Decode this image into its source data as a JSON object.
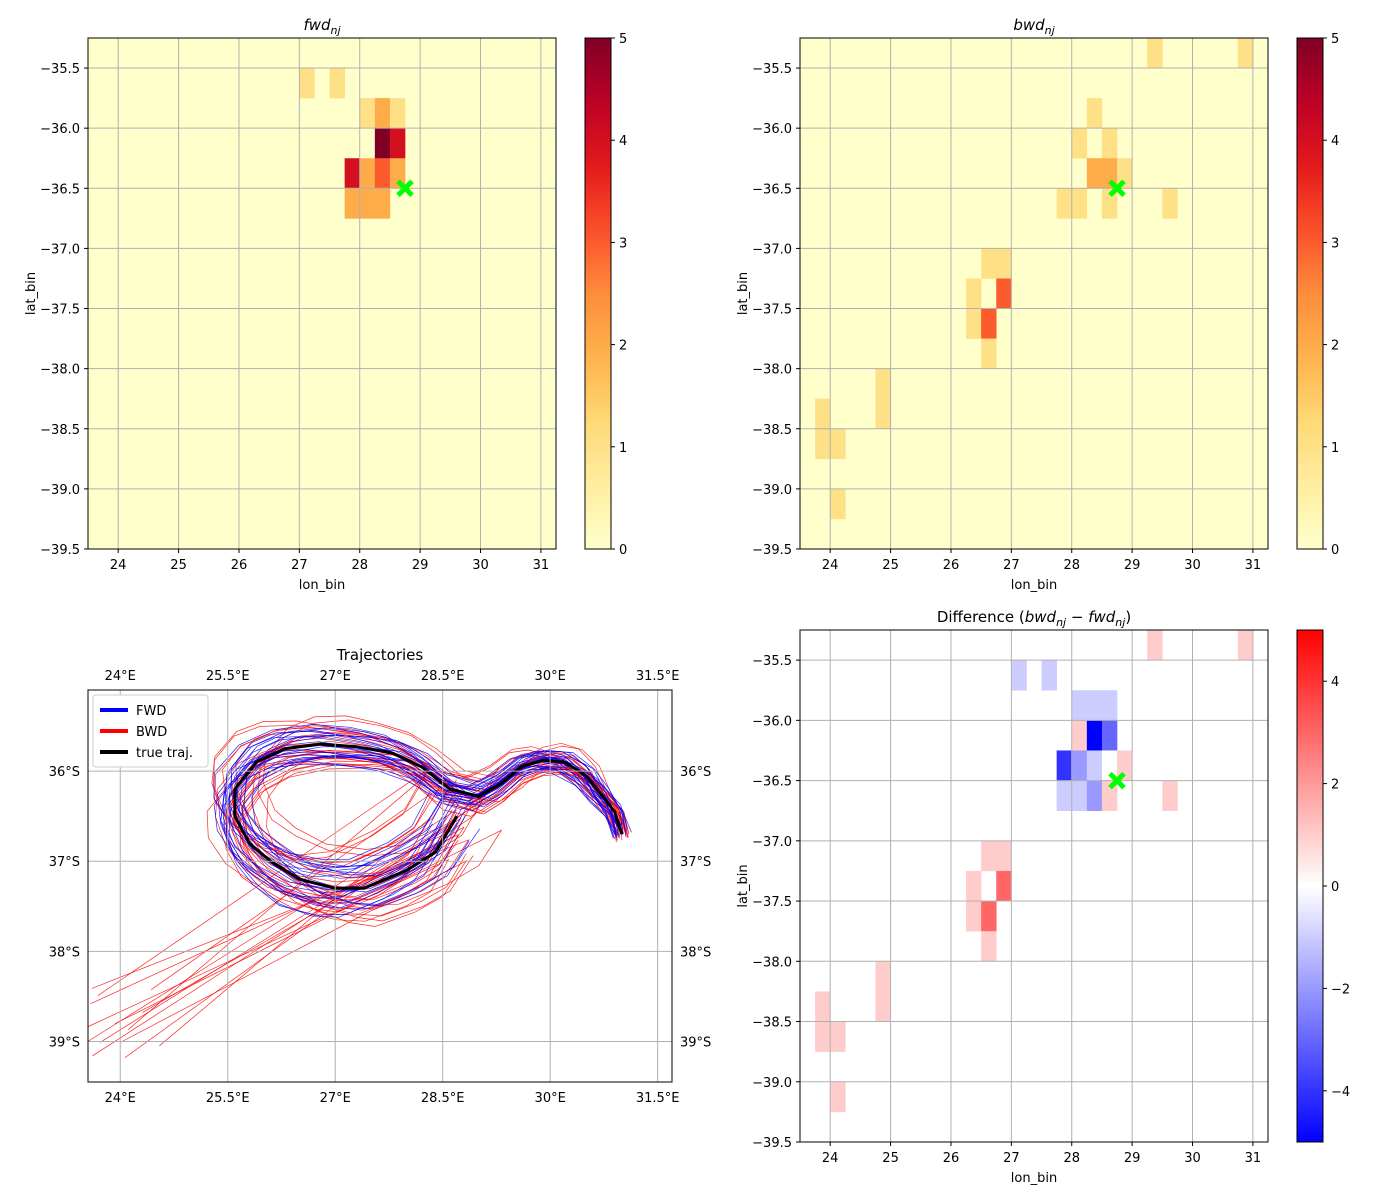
{
  "chart_data": [
    {
      "type": "heatmap",
      "id": "fwd",
      "title_main": "fwd",
      "title_sub": "nj",
      "xlabel": "lon_bin",
      "ylabel": "lat_bin",
      "xlim": [
        23.5,
        31.25
      ],
      "ylim": [
        -39.5,
        -35.25
      ],
      "xticks": [
        24,
        25,
        26,
        27,
        28,
        29,
        30,
        31
      ],
      "yticks": [
        -35.5,
        -36.0,
        -36.5,
        -37.0,
        -37.5,
        -38.0,
        -38.5,
        -39.0,
        -39.5
      ],
      "grid": true,
      "colormap": "YlOrRd",
      "clim": [
        0,
        5
      ],
      "colorbar_ticks": [
        0,
        1,
        2,
        3,
        4,
        5
      ],
      "bin_size_deg": 0.25,
      "cells": [
        {
          "lon": 27.0,
          "lat": -35.75,
          "value": 1
        },
        {
          "lon": 27.5,
          "lat": -35.75,
          "value": 1
        },
        {
          "lon": 28.0,
          "lat": -36.0,
          "value": 1
        },
        {
          "lon": 28.25,
          "lat": -36.0,
          "value": 2
        },
        {
          "lon": 28.5,
          "lat": -36.0,
          "value": 1
        },
        {
          "lon": 28.25,
          "lat": -36.25,
          "value": 5
        },
        {
          "lon": 28.5,
          "lat": -36.25,
          "value": 4
        },
        {
          "lon": 27.75,
          "lat": -36.5,
          "value": 4
        },
        {
          "lon": 28.0,
          "lat": -36.5,
          "value": 2
        },
        {
          "lon": 28.25,
          "lat": -36.5,
          "value": 3
        },
        {
          "lon": 28.5,
          "lat": -36.5,
          "value": 2
        },
        {
          "lon": 27.75,
          "lat": -36.75,
          "value": 2
        },
        {
          "lon": 28.0,
          "lat": -36.75,
          "value": 2
        },
        {
          "lon": 28.25,
          "lat": -36.75,
          "value": 2
        }
      ],
      "marker": {
        "lon": 28.75,
        "lat": -36.5,
        "color": "#00ff00",
        "shape": "X"
      }
    },
    {
      "type": "heatmap",
      "id": "bwd",
      "title_main": "bwd",
      "title_sub": "nj",
      "xlabel": "lon_bin",
      "ylabel": "lat_bin",
      "xlim": [
        23.5,
        31.25
      ],
      "ylim": [
        -39.5,
        -35.25
      ],
      "xticks": [
        24,
        25,
        26,
        27,
        28,
        29,
        30,
        31
      ],
      "yticks": [
        -35.5,
        -36.0,
        -36.5,
        -37.0,
        -37.5,
        -38.0,
        -38.5,
        -39.0,
        -39.5
      ],
      "grid": true,
      "colormap": "YlOrRd",
      "clim": [
        0,
        5
      ],
      "colorbar_ticks": [
        0,
        1,
        2,
        3,
        4,
        5
      ],
      "bin_size_deg": 0.25,
      "cells": [
        {
          "lon": 29.25,
          "lat": -35.5,
          "value": 1
        },
        {
          "lon": 30.75,
          "lat": -35.5,
          "value": 1
        },
        {
          "lon": 28.25,
          "lat": -36.0,
          "value": 1
        },
        {
          "lon": 28.0,
          "lat": -36.25,
          "value": 1
        },
        {
          "lon": 28.5,
          "lat": -36.25,
          "value": 1
        },
        {
          "lon": 28.25,
          "lat": -36.5,
          "value": 2
        },
        {
          "lon": 28.5,
          "lat": -36.5,
          "value": 2
        },
        {
          "lon": 28.75,
          "lat": -36.5,
          "value": 1
        },
        {
          "lon": 27.75,
          "lat": -36.75,
          "value": 1
        },
        {
          "lon": 28.0,
          "lat": -36.75,
          "value": 1
        },
        {
          "lon": 28.5,
          "lat": -36.75,
          "value": 1
        },
        {
          "lon": 29.5,
          "lat": -36.75,
          "value": 1
        },
        {
          "lon": 26.5,
          "lat": -37.25,
          "value": 1
        },
        {
          "lon": 26.75,
          "lat": -37.25,
          "value": 1
        },
        {
          "lon": 26.25,
          "lat": -37.5,
          "value": 1
        },
        {
          "lon": 26.75,
          "lat": -37.5,
          "value": 3
        },
        {
          "lon": 26.25,
          "lat": -37.75,
          "value": 1
        },
        {
          "lon": 26.5,
          "lat": -37.75,
          "value": 3
        },
        {
          "lon": 26.5,
          "lat": -38.0,
          "value": 1
        },
        {
          "lon": 24.75,
          "lat": -38.25,
          "value": 1
        },
        {
          "lon": 24.75,
          "lat": -38.5,
          "value": 1
        },
        {
          "lon": 23.75,
          "lat": -38.5,
          "value": 1
        },
        {
          "lon": 23.75,
          "lat": -38.75,
          "value": 1
        },
        {
          "lon": 24.0,
          "lat": -38.75,
          "value": 1
        },
        {
          "lon": 24.0,
          "lat": -39.25,
          "value": 1
        }
      ],
      "marker": {
        "lon": 28.75,
        "lat": -36.5,
        "color": "#00ff00",
        "shape": "X"
      }
    },
    {
      "type": "line",
      "id": "traj",
      "title": "Trajectories",
      "projection": "PlateCarree",
      "xlim": [
        23.55,
        31.7
      ],
      "ylim": [
        -39.45,
        -35.1
      ],
      "xticks": [
        24,
        25.5,
        27,
        28.5,
        30,
        31.5
      ],
      "xticklabels": [
        "24°E",
        "25.5°E",
        "27°E",
        "28.5°E",
        "30°E",
        "31.5°E"
      ],
      "yticks": [
        -36,
        -37,
        -38,
        -39
      ],
      "yticklabels": [
        "36°S",
        "37°S",
        "38°S",
        "39°S"
      ],
      "grid": true,
      "legend": {
        "position": "upper-left",
        "entries": [
          {
            "label": "FWD",
            "color": "#0000ff"
          },
          {
            "label": "BWD",
            "color": "#ff0000"
          },
          {
            "label": "true traj."
          }
        ]
      },
      "series": [
        {
          "name": "FWD",
          "color": "#0000ff",
          "description": "ensemble of forward trajectories"
        },
        {
          "name": "BWD",
          "color": "#ff0000",
          "description": "ensemble of backward trajectories"
        },
        {
          "name": "true traj.",
          "color": "#000000",
          "x": [
            28.7,
            28.4,
            28.0,
            27.4,
            27.0,
            26.5,
            26.1,
            25.8,
            25.6,
            25.6,
            25.9,
            26.3,
            26.8,
            27.3,
            27.8,
            28.2,
            28.6,
            29.0,
            29.3,
            29.6,
            29.9,
            30.2,
            30.5,
            30.7,
            30.9,
            31.0
          ],
          "y": [
            -36.5,
            -36.9,
            -37.1,
            -37.3,
            -37.3,
            -37.2,
            -37.0,
            -36.8,
            -36.5,
            -36.2,
            -35.9,
            -35.75,
            -35.7,
            -35.73,
            -35.8,
            -35.95,
            -36.2,
            -36.28,
            -36.15,
            -35.95,
            -35.88,
            -35.9,
            -36.05,
            -36.25,
            -36.45,
            -36.7
          ]
        }
      ]
    },
    {
      "type": "heatmap",
      "id": "diff",
      "title_prefix": "Difference (",
      "title_a": "bwd",
      "title_minus": " − ",
      "title_b": "fwd",
      "title_sub": "nj",
      "title_suffix": ")",
      "xlabel": "lon_bin",
      "ylabel": "lat_bin",
      "xlim": [
        23.5,
        31.25
      ],
      "ylim": [
        -39.5,
        -35.25
      ],
      "xticks": [
        24,
        25,
        26,
        27,
        28,
        29,
        30,
        31
      ],
      "yticks": [
        -35.5,
        -36.0,
        -36.5,
        -37.0,
        -37.5,
        -38.0,
        -38.5,
        -39.0,
        -39.5
      ],
      "grid": true,
      "colormap": "bwr",
      "clim": [
        -5,
        5
      ],
      "colorbar_ticks": [
        -4,
        -2,
        0,
        2,
        4
      ],
      "bin_size_deg": 0.25,
      "cells": [
        {
          "lon": 29.25,
          "lat": -35.5,
          "value": 1
        },
        {
          "lon": 30.75,
          "lat": -35.5,
          "value": 1
        },
        {
          "lon": 27.0,
          "lat": -35.75,
          "value": -1
        },
        {
          "lon": 27.5,
          "lat": -35.75,
          "value": -1
        },
        {
          "lon": 28.0,
          "lat": -36.0,
          "value": -1
        },
        {
          "lon": 28.25,
          "lat": -36.0,
          "value": -1
        },
        {
          "lon": 28.5,
          "lat": -36.0,
          "value": -1
        },
        {
          "lon": 28.0,
          "lat": -36.25,
          "value": 1
        },
        {
          "lon": 28.25,
          "lat": -36.25,
          "value": -5
        },
        {
          "lon": 28.5,
          "lat": -36.25,
          "value": -3
        },
        {
          "lon": 27.75,
          "lat": -36.5,
          "value": -4
        },
        {
          "lon": 28.0,
          "lat": -36.5,
          "value": -2
        },
        {
          "lon": 28.25,
          "lat": -36.5,
          "value": -1
        },
        {
          "lon": 28.5,
          "lat": -36.5,
          "value": 0
        },
        {
          "lon": 28.75,
          "lat": -36.5,
          "value": 1
        },
        {
          "lon": 27.75,
          "lat": -36.75,
          "value": -1
        },
        {
          "lon": 28.0,
          "lat": -36.75,
          "value": -1
        },
        {
          "lon": 28.25,
          "lat": -36.75,
          "value": -2
        },
        {
          "lon": 28.5,
          "lat": -36.75,
          "value": 1
        },
        {
          "lon": 29.5,
          "lat": -36.75,
          "value": 1
        },
        {
          "lon": 26.5,
          "lat": -37.25,
          "value": 1
        },
        {
          "lon": 26.75,
          "lat": -37.25,
          "value": 1
        },
        {
          "lon": 26.25,
          "lat": -37.5,
          "value": 1
        },
        {
          "lon": 26.75,
          "lat": -37.5,
          "value": 3
        },
        {
          "lon": 26.25,
          "lat": -37.75,
          "value": 1
        },
        {
          "lon": 26.5,
          "lat": -37.75,
          "value": 3
        },
        {
          "lon": 26.5,
          "lat": -38.0,
          "value": 1
        },
        {
          "lon": 24.75,
          "lat": -38.25,
          "value": 1
        },
        {
          "lon": 24.75,
          "lat": -38.5,
          "value": 1
        },
        {
          "lon": 23.75,
          "lat": -38.5,
          "value": 1
        },
        {
          "lon": 23.75,
          "lat": -38.75,
          "value": 1
        },
        {
          "lon": 24.0,
          "lat": -38.75,
          "value": 1
        },
        {
          "lon": 24.0,
          "lat": -39.25,
          "value": 1
        }
      ],
      "marker": {
        "lon": 28.75,
        "lat": -36.5,
        "color": "#00ff00",
        "shape": "X"
      }
    }
  ]
}
